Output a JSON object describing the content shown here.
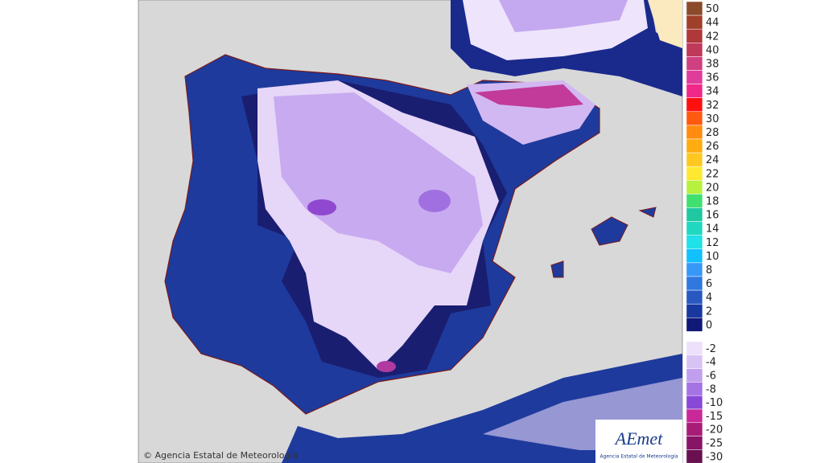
{
  "map": {
    "credit": "© Agencia Estatal de Meteorología",
    "logo": {
      "name": "AEmet",
      "subtitle": "Agencia Estatal de Meteorología"
    }
  },
  "legend": {
    "items": [
      {
        "label": 50,
        "color": "#8b4a2b"
      },
      {
        "label": 44,
        "color": "#a0402a"
      },
      {
        "label": 42,
        "color": "#b03838"
      },
      {
        "label": 40,
        "color": "#c0385a"
      },
      {
        "label": 38,
        "color": "#d04080"
      },
      {
        "label": 36,
        "color": "#e03c9c"
      },
      {
        "label": 34,
        "color": "#f02888"
      },
      {
        "label": 32,
        "color": "#ff1010"
      },
      {
        "label": 30,
        "color": "#ff5a10"
      },
      {
        "label": 28,
        "color": "#ff8c10"
      },
      {
        "label": 26,
        "color": "#ffac10"
      },
      {
        "label": 24,
        "color": "#ffc820"
      },
      {
        "label": 22,
        "color": "#ffe830"
      },
      {
        "label": 20,
        "color": "#b8f040"
      },
      {
        "label": 18,
        "color": "#40e070"
      },
      {
        "label": 16,
        "color": "#20c8a0"
      },
      {
        "label": 14,
        "color": "#20d8c0"
      },
      {
        "label": 12,
        "color": "#20e0e8"
      },
      {
        "label": 10,
        "color": "#10c0ff"
      },
      {
        "label": 8,
        "color": "#3898f8"
      },
      {
        "label": 6,
        "color": "#3078e0"
      },
      {
        "label": 4,
        "color": "#2858c0"
      },
      {
        "label": 2,
        "color": "#1838a0"
      },
      {
        "label": 0,
        "color": "#101878"
      },
      {
        "label": -2,
        "color": "#ece0fa"
      },
      {
        "label": -4,
        "color": "#d8c4f4"
      },
      {
        "label": -6,
        "color": "#c0a0ee"
      },
      {
        "label": -8,
        "color": "#a474e4"
      },
      {
        "label": -10,
        "color": "#8848d8"
      },
      {
        "label": -15,
        "color": "#c82898"
      },
      {
        "label": -20,
        "color": "#a81c78"
      },
      {
        "label": -25,
        "color": "#881468"
      },
      {
        "label": -30,
        "color": "#681050"
      }
    ]
  }
}
